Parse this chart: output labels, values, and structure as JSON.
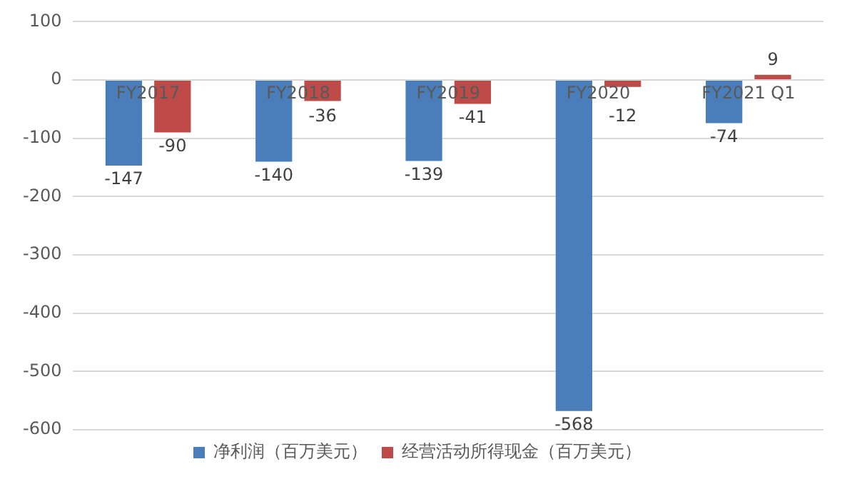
{
  "chart_data": {
    "type": "bar",
    "categories": [
      "FY2017",
      "FY2018",
      "FY2019",
      "FY2020",
      "FY2021 Q1"
    ],
    "series": [
      {
        "name": "净利润（百万美元）",
        "color": "#4a7ebb",
        "values": [
          -147,
          -140,
          -139,
          -568,
          -74
        ]
      },
      {
        "name": "经营活动所得现金（百万美元）",
        "color": "#be4b48",
        "values": [
          -90,
          -36,
          -41,
          -12,
          9
        ]
      }
    ],
    "ylim": [
      -600,
      100
    ],
    "yticks": [
      -600,
      -500,
      -400,
      -300,
      -200,
      -100,
      0,
      100
    ],
    "grid": "y",
    "legend": "bottom",
    "data_labels": true
  }
}
